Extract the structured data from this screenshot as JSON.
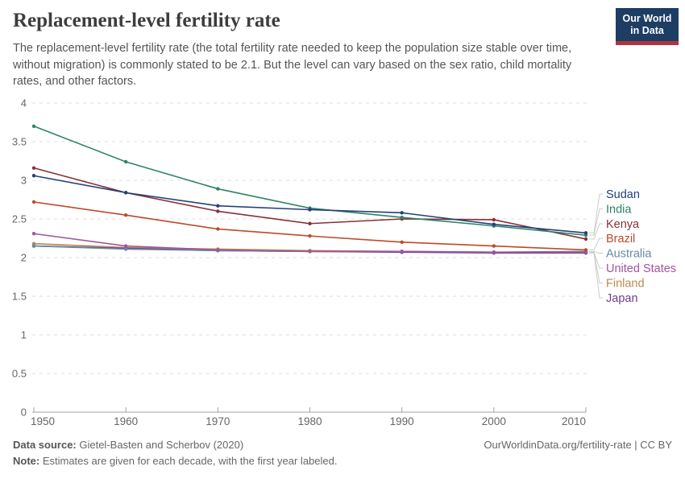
{
  "header": {
    "title": "Replacement-level fertility rate",
    "subtitle": "The replacement-level fertility rate (the total fertility rate needed to keep the population size stable over time, without migration) is commonly stated to be 2.1. But the level can vary based on the sex ratio, child mortality rates, and other factors.",
    "logo": {
      "line1": "Our World",
      "line2": "in Data",
      "bg_color": "#1d3d63",
      "accent_color": "#b0333f"
    }
  },
  "chart_data": {
    "type": "line",
    "x": [
      1950,
      1960,
      1970,
      1980,
      1990,
      2000,
      2010
    ],
    "series": [
      {
        "name": "Sudan",
        "color": "#24407a",
        "values": [
          3.06,
          2.84,
          2.67,
          2.62,
          2.58,
          2.43,
          2.32
        ]
      },
      {
        "name": "India",
        "color": "#2c8465",
        "values": [
          3.7,
          3.24,
          2.89,
          2.64,
          2.52,
          2.41,
          2.29
        ]
      },
      {
        "name": "Kenya",
        "color": "#883039",
        "values": [
          3.16,
          2.84,
          2.6,
          2.44,
          2.5,
          2.49,
          2.24
        ]
      },
      {
        "name": "Brazil",
        "color": "#bc4a29",
        "values": [
          2.72,
          2.55,
          2.37,
          2.28,
          2.2,
          2.15,
          2.1
        ]
      },
      {
        "name": "Australia",
        "color": "#6788a8",
        "values": [
          2.15,
          2.11,
          2.09,
          2.08,
          2.08,
          2.07,
          2.08
        ]
      },
      {
        "name": "United States",
        "color": "#a2559c",
        "values": [
          2.31,
          2.15,
          2.1,
          2.08,
          2.08,
          2.07,
          2.07
        ]
      },
      {
        "name": "Finland",
        "color": "#b9894a",
        "values": [
          2.18,
          2.13,
          2.11,
          2.09,
          2.08,
          2.07,
          2.07
        ]
      },
      {
        "name": "Japan",
        "color": "#6d3e91",
        "values": [
          2.15,
          2.12,
          2.09,
          2.08,
          2.07,
          2.06,
          2.06
        ]
      }
    ],
    "title": "Replacement-level fertility rate",
    "xlabel": "",
    "ylabel": "",
    "ylim": [
      0,
      4
    ],
    "ytick_labels": [
      "0",
      "0.5",
      "1",
      "1.5",
      "2",
      "2.5",
      "3",
      "3.5",
      "4"
    ],
    "xtick_labels": [
      "1950",
      "1960",
      "1970",
      "1980",
      "1990",
      "2000",
      "2010"
    ],
    "grid": "horizontal-dashed",
    "legend_position": "right",
    "draw_order": [
      6,
      7,
      4,
      5,
      2,
      1,
      0,
      3
    ],
    "colors": {
      "grid": "#dcdcdc",
      "axis": "#a3a3a3",
      "tick_text": "#666666",
      "connector": "#cccccc"
    }
  },
  "footer": {
    "source_label": "Data source:",
    "source_value": " Gietel-Basten and Scherbov (2020)",
    "note_label": "Note:",
    "note_value": " Estimates are given for each decade, with the first year labeled.",
    "attribution": "OurWorldinData.org/fertility-rate | CC BY"
  }
}
